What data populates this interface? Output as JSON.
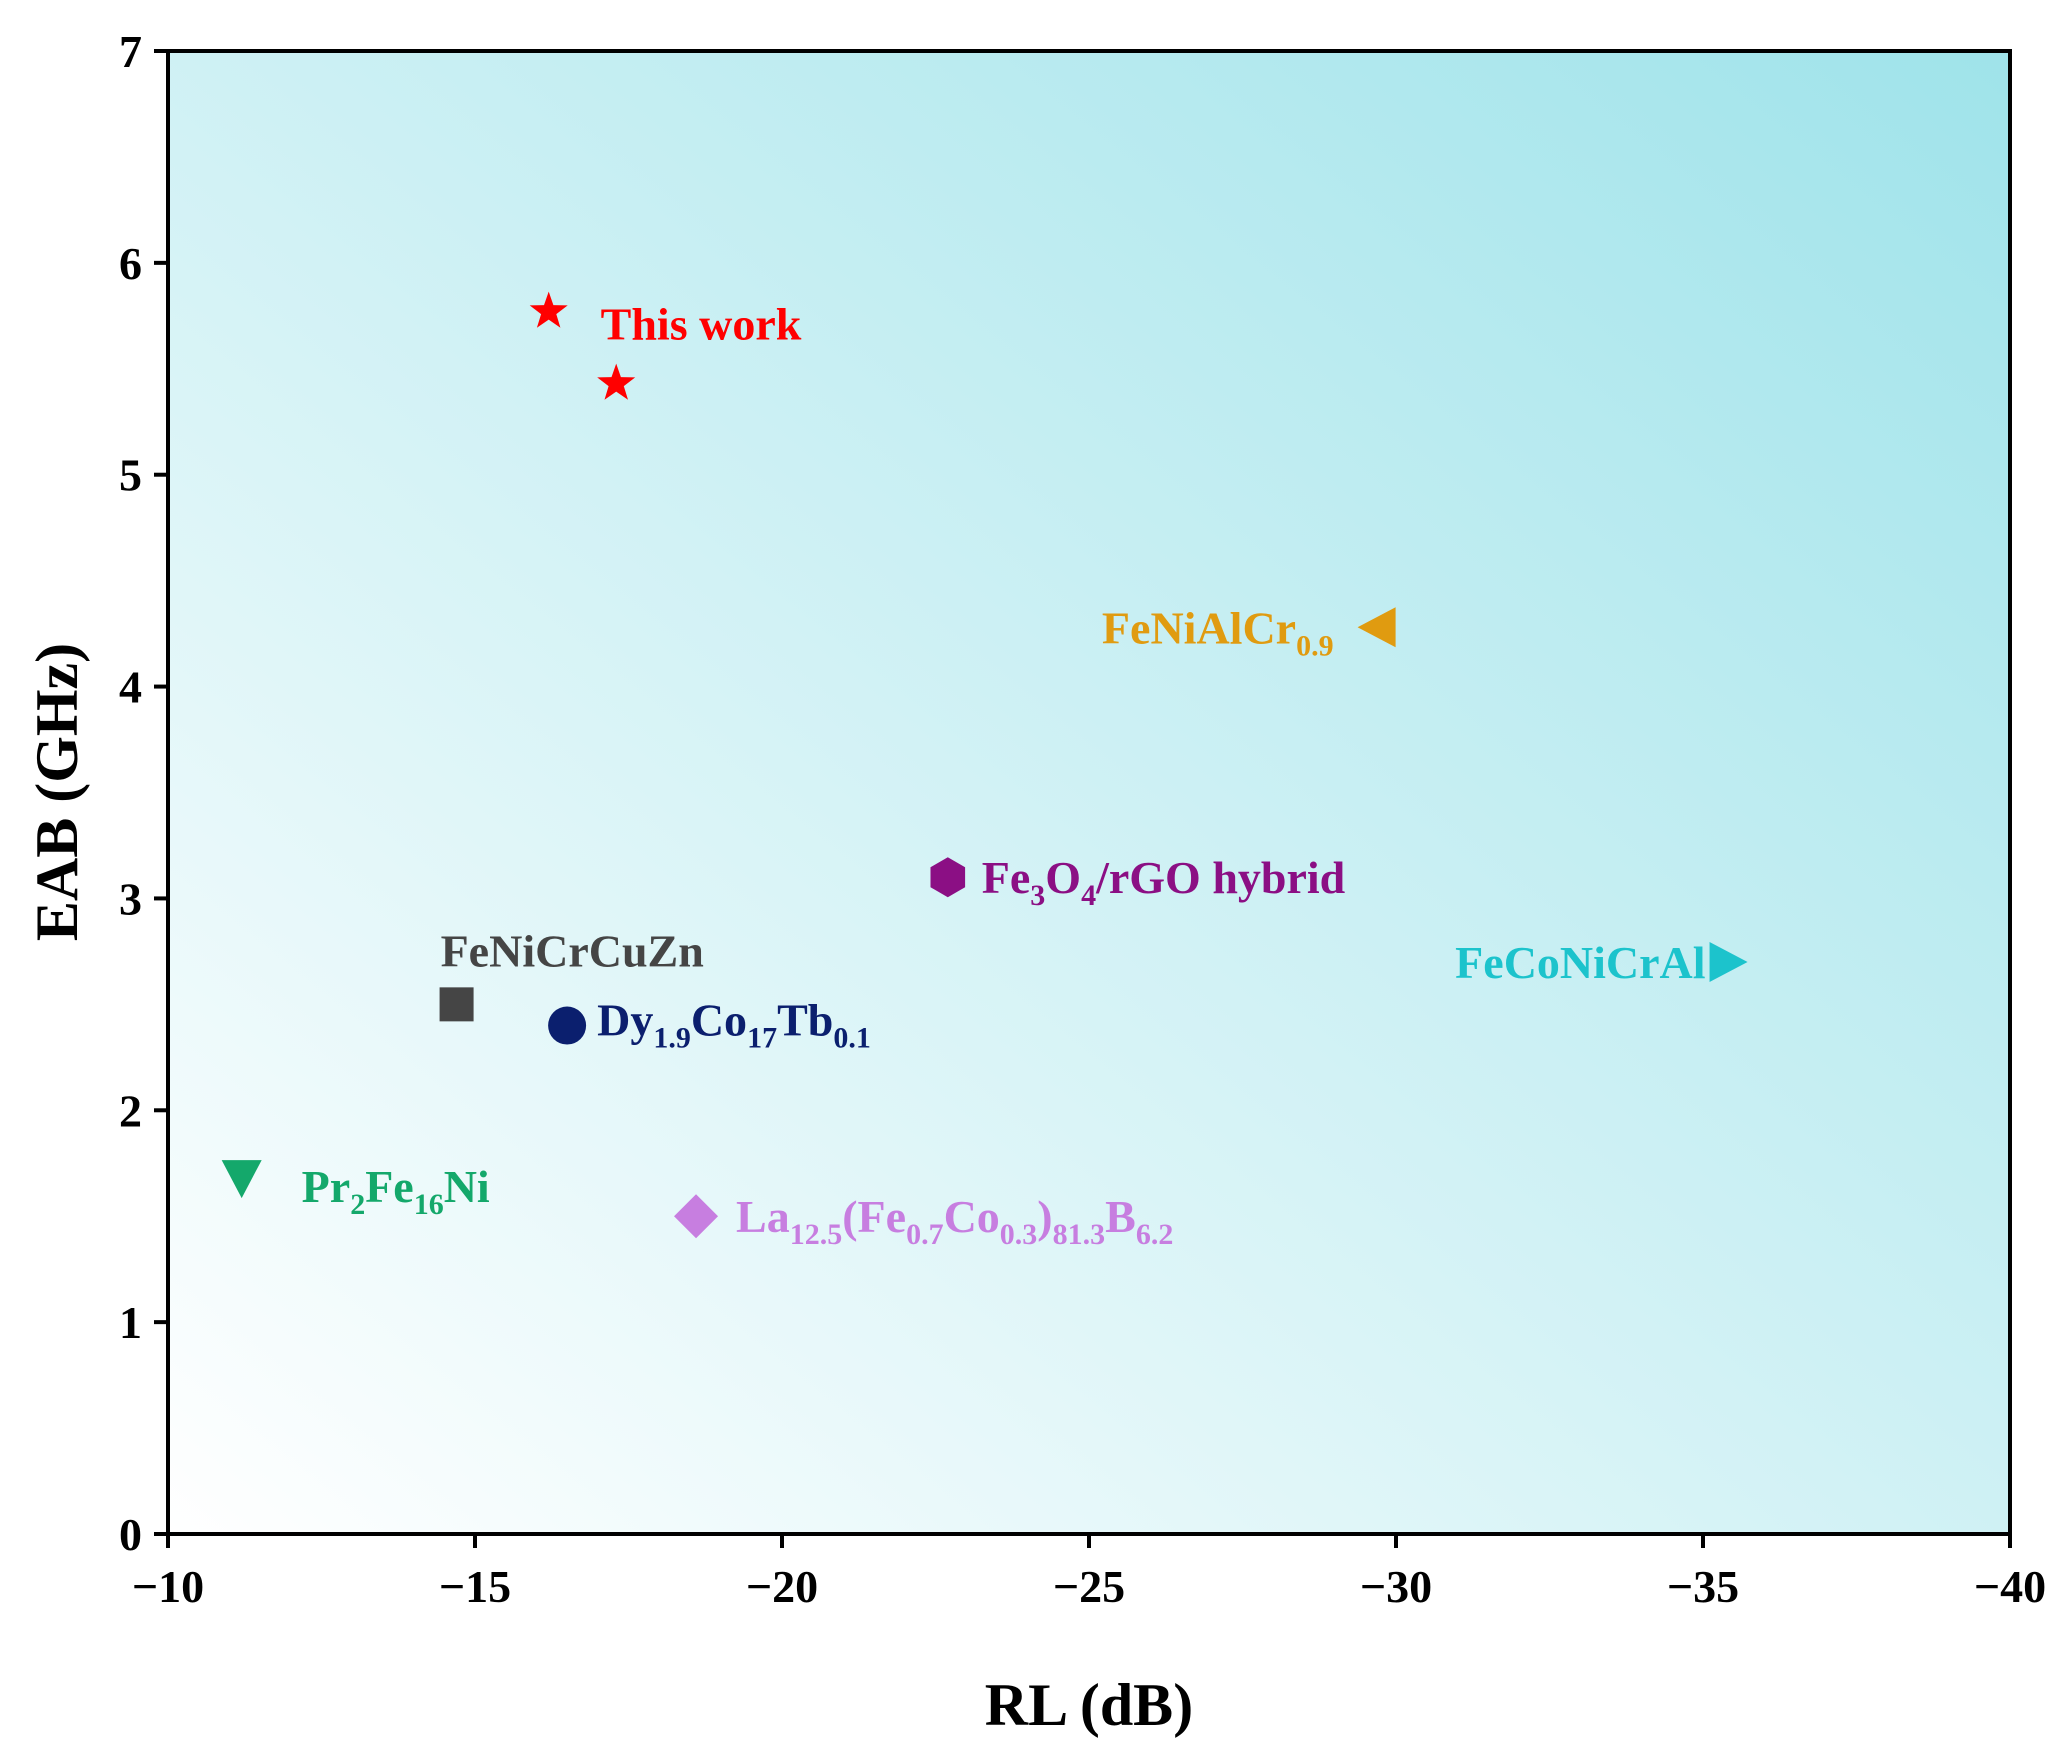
{
  "chart_data": {
    "type": "scatter",
    "xlabel": "RL (dB)",
    "ylabel": "EAB (GHz)",
    "xlim": [
      -10,
      -40
    ],
    "ylim": [
      0,
      7
    ],
    "x_ticks": [
      -10,
      -15,
      -20,
      -25,
      -30,
      -35,
      -40
    ],
    "x_tick_labels": [
      "−10",
      "−15",
      "−20",
      "−25",
      "−30",
      "−35",
      "−40"
    ],
    "y_ticks": [
      0,
      1,
      2,
      3,
      4,
      5,
      6,
      7
    ],
    "y_tick_labels": [
      "0",
      "1",
      "2",
      "3",
      "4",
      "5",
      "6",
      "7"
    ],
    "background": "gradient white (bottom-left) to cyan (top-right)",
    "background_colors": [
      "#ffffff",
      "#9fe3ea"
    ],
    "series": [
      {
        "label": [
          {
            "t": "This work"
          }
        ],
        "marker": "star",
        "color": "#ff0000",
        "points": [
          {
            "x": -16.2,
            "y": 5.77
          },
          {
            "x": -17.3,
            "y": 5.43
          }
        ]
      },
      {
        "label": [
          {
            "t": "FeNiAlCr"
          },
          {
            "t": "0.9",
            "sub": true
          }
        ],
        "marker": "triangle-left",
        "color": "#e09b10",
        "points": [
          {
            "x": -29.7,
            "y": 4.28
          }
        ]
      },
      {
        "label": [
          {
            "t": "Fe"
          },
          {
            "t": "3",
            "sub": true
          },
          {
            "t": "O"
          },
          {
            "t": "4",
            "sub": true
          },
          {
            "t": "/rGO hybrid"
          }
        ],
        "marker": "hexagon",
        "color": "#8b0f84",
        "points": [
          {
            "x": -22.7,
            "y": 3.1
          }
        ]
      },
      {
        "label": [
          {
            "t": "FeCoNiCrAl"
          }
        ],
        "marker": "triangle-right",
        "color": "#1cc3cc",
        "points": [
          {
            "x": -35.4,
            "y": 2.7
          }
        ]
      },
      {
        "label": [
          {
            "t": "FeNiCrCuZn"
          }
        ],
        "marker": "square",
        "color": "#454545",
        "points": [
          {
            "x": -14.7,
            "y": 2.5
          }
        ]
      },
      {
        "label": [
          {
            "t": "Dy"
          },
          {
            "t": "1.9",
            "sub": true
          },
          {
            "t": "Co"
          },
          {
            "t": "17",
            "sub": true
          },
          {
            "t": "Tb"
          },
          {
            "t": "0.1",
            "sub": true
          }
        ],
        "marker": "circle",
        "color": "#0b1f6e",
        "points": [
          {
            "x": -16.5,
            "y": 2.4
          }
        ]
      },
      {
        "label": [
          {
            "t": "Pr"
          },
          {
            "t": "2",
            "sub": true
          },
          {
            "t": "Fe"
          },
          {
            "t": "16",
            "sub": true
          },
          {
            "t": "Ni"
          }
        ],
        "marker": "triangle-down",
        "color": "#14a86b",
        "points": [
          {
            "x": -11.2,
            "y": 1.68
          }
        ]
      },
      {
        "label": [
          {
            "t": "La"
          },
          {
            "t": "12.5",
            "sub": true
          },
          {
            "t": "(Fe"
          },
          {
            "t": "0.7",
            "sub": true
          },
          {
            "t": "Co"
          },
          {
            "t": "0.3",
            "sub": true
          },
          {
            "t": ")"
          },
          {
            "t": "81.3",
            "sub": true
          },
          {
            "t": "B"
          },
          {
            "t": "6.2",
            "sub": true
          }
        ],
        "marker": "diamond",
        "color": "#c77ee0",
        "points": [
          {
            "x": -18.6,
            "y": 1.5
          }
        ]
      }
    ]
  }
}
